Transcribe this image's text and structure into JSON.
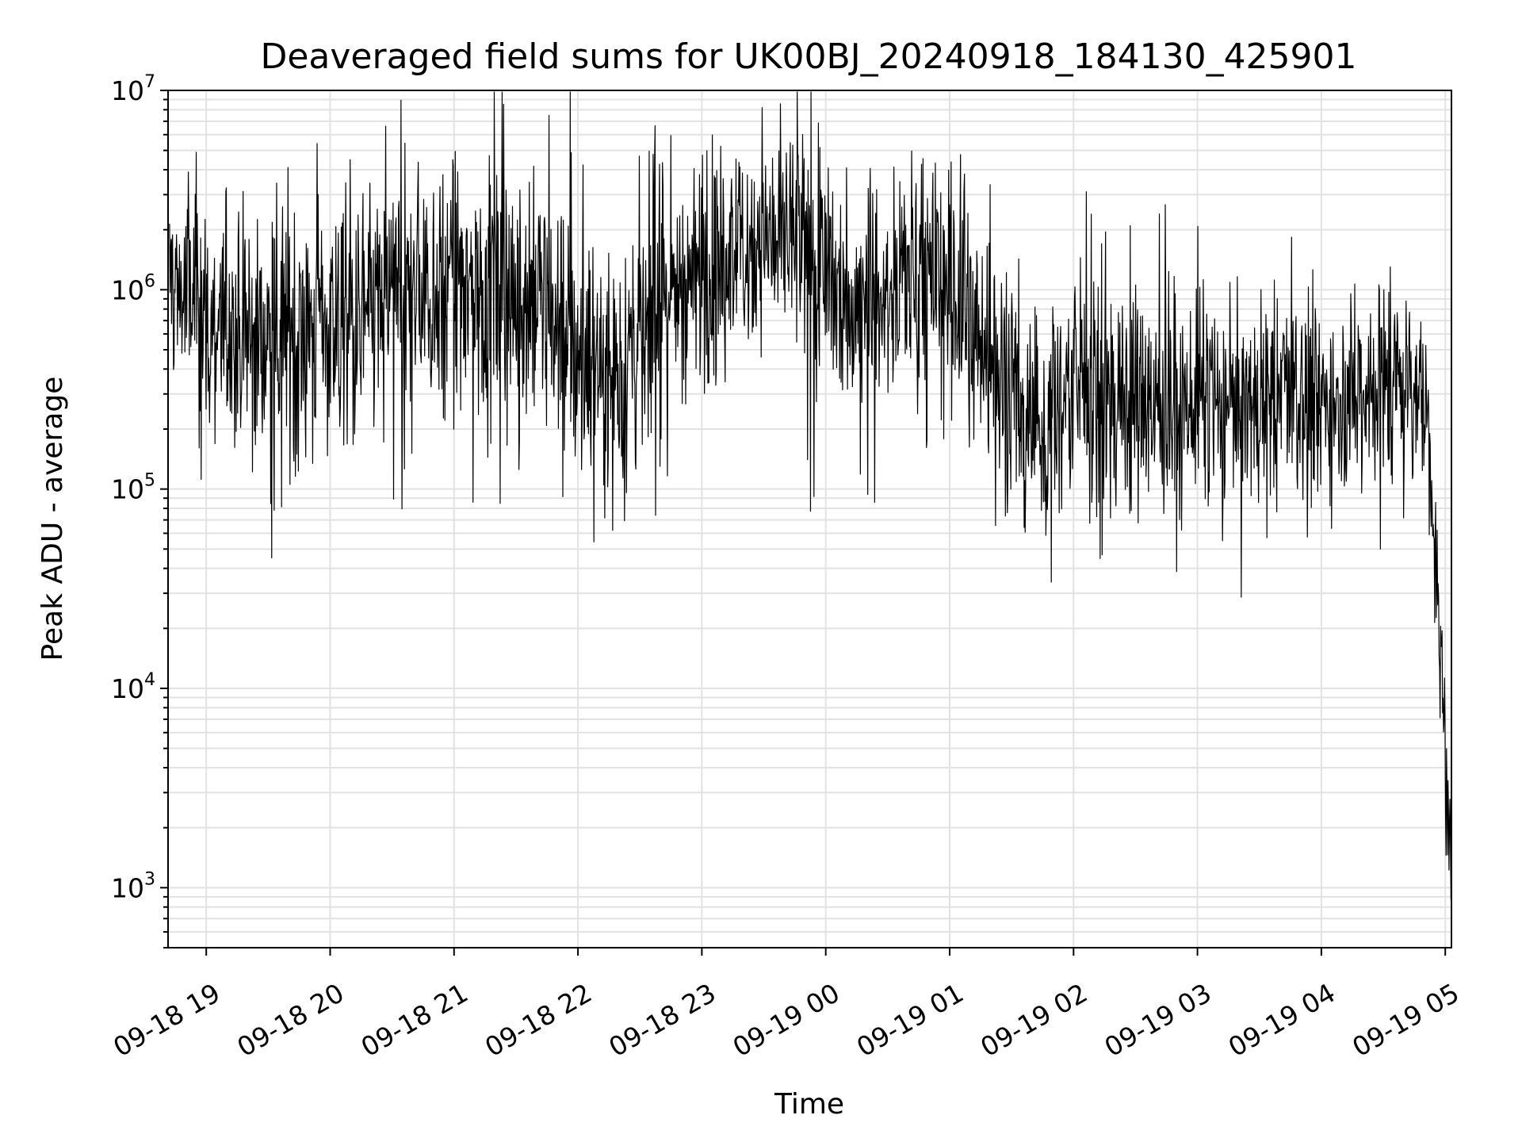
{
  "chart_data": {
    "type": "line",
    "title": "Deaveraged field sums for UK00BJ_20240918_184130_425901",
    "xlabel": "Time",
    "ylabel": "Peak ADU - average",
    "yscale": "log",
    "ylim": [
      500,
      10000000
    ],
    "xlim": [
      "2024-09-18T18:41:30",
      "2024-09-19T05:03:00"
    ],
    "grid": true,
    "legend": "none",
    "line_color": "#000000",
    "x_ticks": [
      {
        "value": "2024-09-18T19:00:00",
        "label": "09-18 19"
      },
      {
        "value": "2024-09-18T20:00:00",
        "label": "09-18 20"
      },
      {
        "value": "2024-09-18T21:00:00",
        "label": "09-18 21"
      },
      {
        "value": "2024-09-18T22:00:00",
        "label": "09-18 22"
      },
      {
        "value": "2024-09-18T23:00:00",
        "label": "09-18 23"
      },
      {
        "value": "2024-09-19T00:00:00",
        "label": "09-19 00"
      },
      {
        "value": "2024-09-19T01:00:00",
        "label": "09-19 01"
      },
      {
        "value": "2024-09-19T02:00:00",
        "label": "09-19 02"
      },
      {
        "value": "2024-09-19T03:00:00",
        "label": "09-19 03"
      },
      {
        "value": "2024-09-19T04:00:00",
        "label": "09-19 04"
      },
      {
        "value": "2024-09-19T05:00:00",
        "label": "09-19 05"
      }
    ],
    "y_ticks": [
      {
        "value": 1000,
        "base": "10",
        "exp": "3"
      },
      {
        "value": 10000,
        "base": "10",
        "exp": "4"
      },
      {
        "value": 100000,
        "base": "10",
        "exp": "5"
      },
      {
        "value": 1000000,
        "base": "10",
        "exp": "6"
      },
      {
        "value": 10000000,
        "base": "10",
        "exp": "7"
      }
    ],
    "series": [
      {
        "x": [
          "2024-09-18T18:42",
          "2024-09-18T18:50",
          "2024-09-18T19:00",
          "2024-09-18T19:10",
          "2024-09-18T19:20",
          "2024-09-18T19:30",
          "2024-09-18T19:40",
          "2024-09-18T19:50",
          "2024-09-18T20:00",
          "2024-09-18T20:10",
          "2024-09-18T20:20",
          "2024-09-18T20:30",
          "2024-09-18T20:40",
          "2024-09-18T20:50",
          "2024-09-18T21:00",
          "2024-09-18T21:10",
          "2024-09-18T21:20",
          "2024-09-18T21:30",
          "2024-09-18T21:40",
          "2024-09-18T21:50",
          "2024-09-18T22:00",
          "2024-09-18T22:10",
          "2024-09-18T22:20",
          "2024-09-18T22:30",
          "2024-09-18T22:40",
          "2024-09-18T22:50",
          "2024-09-18T23:00",
          "2024-09-18T23:10",
          "2024-09-18T23:20",
          "2024-09-18T23:30",
          "2024-09-18T23:40",
          "2024-09-18T23:50",
          "2024-09-19T00:00",
          "2024-09-19T00:10",
          "2024-09-19T00:20",
          "2024-09-19T00:30",
          "2024-09-19T00:40",
          "2024-09-19T00:50",
          "2024-09-19T01:00",
          "2024-09-19T01:10",
          "2024-09-19T01:20",
          "2024-09-19T01:30",
          "2024-09-19T01:40",
          "2024-09-19T01:50",
          "2024-09-19T02:00",
          "2024-09-19T02:10",
          "2024-09-19T02:20",
          "2024-09-19T02:30",
          "2024-09-19T02:40",
          "2024-09-19T02:50",
          "2024-09-19T03:00",
          "2024-09-19T03:10",
          "2024-09-19T03:20",
          "2024-09-19T03:30",
          "2024-09-19T03:40",
          "2024-09-19T03:50",
          "2024-09-19T04:00",
          "2024-09-19T04:10",
          "2024-09-19T04:20",
          "2024-09-19T04:30",
          "2024-09-19T04:40",
          "2024-09-19T04:48",
          "2024-09-19T04:52",
          "2024-09-19T04:55",
          "2024-09-19T04:57",
          "2024-09-19T04:59",
          "2024-09-19T05:01",
          "2024-09-19T05:03"
        ],
        "y": [
          1200000,
          900000,
          700000,
          600000,
          550000,
          600000,
          650000,
          700000,
          650000,
          700000,
          800000,
          900000,
          1000000,
          1100000,
          1000000,
          1000000,
          950000,
          900000,
          850000,
          700000,
          550000,
          450000,
          400000,
          600000,
          900000,
          1100000,
          1200000,
          1400000,
          1700000,
          1900000,
          1800000,
          1500000,
          1000000,
          900000,
          900000,
          1100000,
          1300000,
          1200000,
          900000,
          700000,
          500000,
          300000,
          200000,
          230000,
          350000,
          300000,
          280000,
          260000,
          250000,
          260000,
          280000,
          260000,
          250000,
          260000,
          270000,
          260000,
          280000,
          300000,
          330000,
          350000,
          380000,
          300000,
          200000,
          60000,
          15000,
          6000,
          3000,
          1200
        ],
        "amplitude": [
          0.45,
          0.5,
          0.55,
          0.55,
          0.55,
          0.55,
          0.55,
          0.55,
          0.55,
          0.55,
          0.55,
          0.55,
          0.55,
          0.55,
          0.55,
          0.55,
          0.55,
          0.55,
          0.55,
          0.55,
          0.55,
          0.55,
          0.6,
          0.6,
          0.55,
          0.5,
          0.5,
          0.5,
          0.45,
          0.45,
          0.45,
          0.5,
          0.5,
          0.55,
          0.55,
          0.5,
          0.5,
          0.5,
          0.55,
          0.55,
          0.55,
          0.5,
          0.45,
          0.45,
          0.55,
          0.55,
          0.5,
          0.5,
          0.5,
          0.5,
          0.45,
          0.45,
          0.45,
          0.45,
          0.45,
          0.45,
          0.45,
          0.45,
          0.45,
          0.45,
          0.45,
          0.3,
          0.35,
          0.4,
          0.35,
          0.3,
          0.3,
          0.2
        ]
      }
    ]
  }
}
